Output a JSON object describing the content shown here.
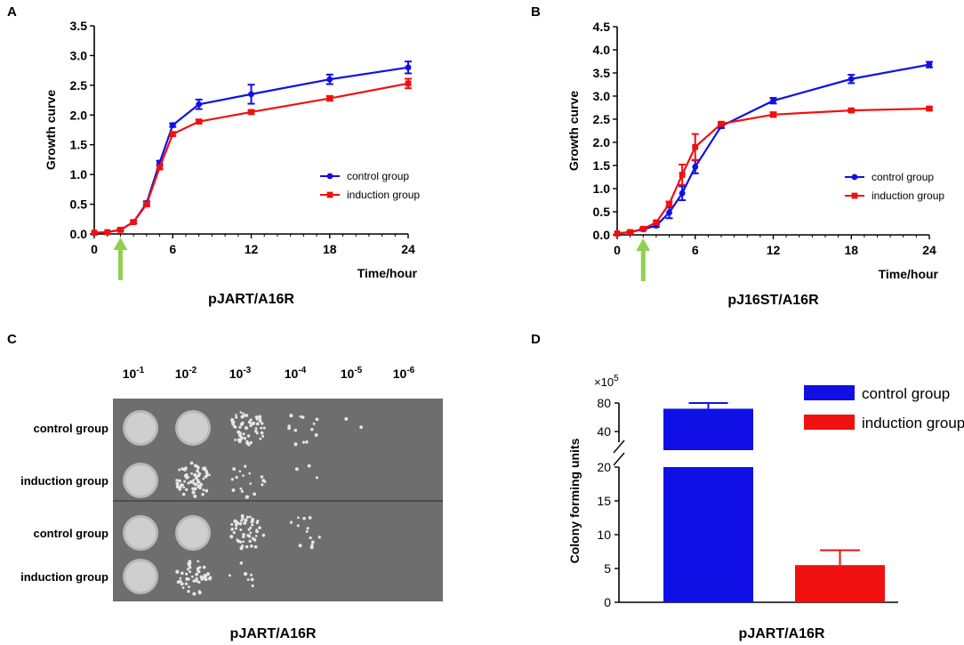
{
  "panel_labels": {
    "a": "A",
    "b": "B",
    "c": "C",
    "d": "D"
  },
  "colors": {
    "control": "#1010e6",
    "induction": "#f01010",
    "arrow": "#8fd14f",
    "plate": "#6e6e6e"
  },
  "chart_data": [
    {
      "type": "line",
      "panel": "A",
      "title": "pJART/A16R",
      "xlabel": "Time/hour",
      "ylabel": "Growth curve",
      "xlim": [
        0,
        24
      ],
      "ylim": [
        0,
        3.5
      ],
      "xticks": [
        0,
        6,
        12,
        18,
        24
      ],
      "yticks": [
        0.0,
        0.5,
        1.0,
        1.5,
        2.0,
        2.5,
        3.0,
        3.5
      ],
      "ytick_labels": [
        "0.0",
        "0.5",
        "1.0",
        "1.5",
        "2.0",
        "2.5",
        "3.0",
        "3.5"
      ],
      "induction_arrow_x": 2,
      "legend": [
        "control group",
        " induction group"
      ],
      "series": [
        {
          "name": "control group",
          "x": [
            0,
            1,
            2,
            3,
            4,
            5,
            6,
            8,
            12,
            18,
            24
          ],
          "values": [
            0.02,
            0.03,
            0.07,
            0.2,
            0.52,
            1.2,
            1.83,
            2.18,
            2.35,
            2.6,
            2.8
          ],
          "err": [
            0,
            0,
            0.02,
            0.02,
            0.03,
            0.03,
            0.03,
            0.08,
            0.16,
            0.08,
            0.1
          ]
        },
        {
          "name": "induction group",
          "x": [
            0,
            1,
            2,
            3,
            4,
            5,
            6,
            8,
            12,
            18,
            24
          ],
          "values": [
            0.02,
            0.03,
            0.07,
            0.2,
            0.5,
            1.12,
            1.68,
            1.89,
            2.05,
            2.28,
            2.53
          ],
          "err": [
            0,
            0,
            0.02,
            0.02,
            0.03,
            0.03,
            0.03,
            0.03,
            0.03,
            0.04,
            0.08
          ]
        }
      ]
    },
    {
      "type": "line",
      "panel": "B",
      "title": "pJ16ST/A16R",
      "xlabel": "Time/hour",
      "ylabel": "Growth curve",
      "xlim": [
        0,
        24
      ],
      "ylim": [
        0,
        4.5
      ],
      "xticks": [
        0,
        6,
        12,
        18,
        24
      ],
      "yticks": [
        0.0,
        0.5,
        1.0,
        1.5,
        2.0,
        2.5,
        3.0,
        3.5,
        4.0,
        4.5
      ],
      "ytick_labels": [
        "0.0",
        "0.5",
        "1.0",
        "1.5",
        "2.0",
        "2.5",
        "3.0",
        "3.5",
        "4.0",
        "4.5"
      ],
      "induction_arrow_x": 2,
      "legend": [
        "control group",
        " induction group"
      ],
      "series": [
        {
          "name": "control group",
          "x": [
            0,
            1,
            2,
            3,
            4,
            5,
            6,
            8,
            12,
            18,
            24
          ],
          "values": [
            0.03,
            0.06,
            0.12,
            0.2,
            0.48,
            0.9,
            1.47,
            2.35,
            2.9,
            3.37,
            3.68
          ],
          "err": [
            0,
            0.02,
            0.02,
            0.03,
            0.12,
            0.15,
            0.14,
            0.04,
            0.06,
            0.09,
            0.06
          ]
        },
        {
          "name": "induction group",
          "x": [
            0,
            1,
            2,
            3,
            4,
            5,
            6,
            8,
            12,
            18,
            24
          ],
          "values": [
            0.03,
            0.06,
            0.13,
            0.27,
            0.67,
            1.3,
            1.9,
            2.4,
            2.6,
            2.69,
            2.73
          ],
          "err": [
            0,
            0.02,
            0.02,
            0.03,
            0.05,
            0.22,
            0.28,
            0.04,
            0.05,
            0.03,
            0.03
          ]
        }
      ]
    },
    {
      "type": "image-grid",
      "panel": "C",
      "title": "pJART/A16R",
      "dilutions": [
        "10-1",
        "10-2",
        "10-3",
        "10-4",
        "10-5",
        "10-6"
      ],
      "dilution_base": "10",
      "dilution_exponents": [
        "-1",
        "-2",
        "-3",
        "-4",
        "-5",
        "-6"
      ],
      "rows": [
        "control group",
        "induction group",
        "control group",
        "induction group"
      ],
      "spot_growth": [
        [
          1.0,
          0.95,
          0.6,
          0.15,
          0.02,
          0.0
        ],
        [
          1.0,
          0.7,
          0.2,
          0.03,
          0.0,
          0.0
        ],
        [
          1.0,
          0.95,
          0.6,
          0.15,
          0.0,
          0.0
        ],
        [
          1.0,
          0.5,
          0.08,
          0.0,
          0.0,
          0.0
        ]
      ]
    },
    {
      "type": "bar",
      "panel": "D",
      "title": "pJART/A16R",
      "ylabel": "Colony forming units",
      "multiplier": "×10",
      "multiplier_exp": "5",
      "categories": [
        "control group",
        " induction group"
      ],
      "values": [
        72,
        5.5
      ],
      "err": [
        8,
        2.2
      ],
      "broken_axis": {
        "lower": [
          0,
          20
        ],
        "upper": [
          20,
          80
        ]
      },
      "yticks_lower": [
        0,
        5,
        10,
        15,
        20
      ],
      "yticks_upper": [
        40,
        80
      ],
      "legend": [
        "control group",
        " induction group"
      ]
    }
  ]
}
